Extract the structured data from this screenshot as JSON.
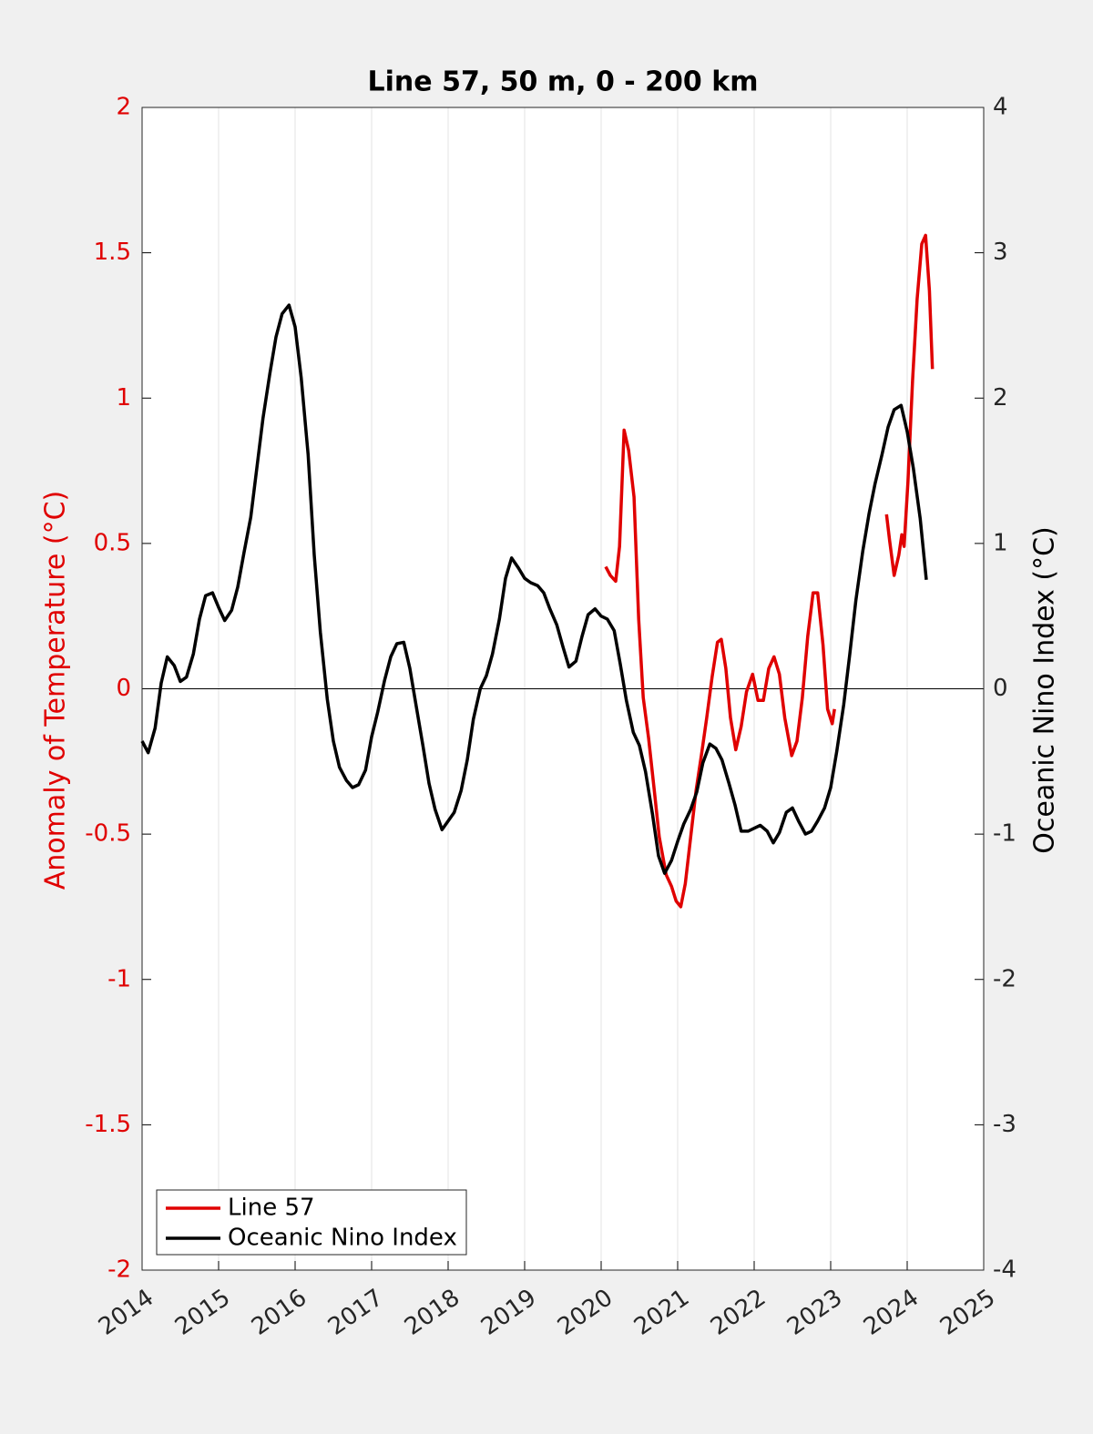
{
  "chart_data": {
    "type": "line",
    "title": "Line 57, 50 m, 0 - 200 km",
    "ylabel": "Anomaly of Temperature (°C)",
    "y2label": "Oceanic Nino Index (°C)",
    "xlim": [
      2014,
      2025
    ],
    "xticks": [
      2014,
      2015,
      2016,
      2017,
      2018,
      2019,
      2020,
      2021,
      2022,
      2023,
      2024,
      2025
    ],
    "ylim": [
      -2,
      2
    ],
    "yticks": [
      -2,
      -1.5,
      -1,
      -0.5,
      0,
      0.5,
      1,
      1.5,
      2
    ],
    "y2lim": [
      -4,
      4
    ],
    "y2ticks": [
      -4,
      -3,
      -2,
      -1,
      0,
      1,
      2,
      3,
      4
    ],
    "grid": "x",
    "legend": "lower left",
    "ylabel_color": "#e00000",
    "series": [
      {
        "name": "Line 57",
        "color": "#e00000",
        "axis": "y",
        "x": [
          2020.06,
          2020.12,
          2020.19,
          2020.24,
          2020.3,
          2020.36,
          2020.43,
          2020.49,
          2020.55,
          2020.62,
          2020.69,
          2020.76,
          2020.85,
          2020.92,
          2020.98,
          2021.04,
          2021.1,
          2021.17,
          2021.24,
          2021.31,
          2021.38,
          2021.45,
          2021.52,
          2021.57,
          2021.63,
          2021.69,
          2021.76,
          2021.83,
          2021.9,
          2021.98,
          2022.05,
          2022.12,
          2022.19,
          2022.26,
          2022.33,
          2022.4,
          2022.49,
          2022.56,
          2022.63,
          2022.7,
          2022.77,
          2022.83,
          2022.9,
          2022.96,
          2023.02,
          2023.05,
          2023.4,
          2023.73,
          2023.77,
          2023.83,
          2023.89,
          2023.93,
          2023.96,
          2024.01,
          2024.07,
          2024.13,
          2024.19,
          2024.24,
          2024.29,
          2024.33
        ],
        "values": [
          0.42,
          0.39,
          0.37,
          0.49,
          0.89,
          0.82,
          0.66,
          0.24,
          -0.03,
          -0.17,
          -0.34,
          -0.51,
          -0.64,
          -0.68,
          -0.73,
          -0.75,
          -0.67,
          -0.51,
          -0.35,
          -0.23,
          -0.1,
          0.04,
          0.16,
          0.17,
          0.07,
          -0.1,
          -0.21,
          -0.13,
          -0.01,
          0.05,
          -0.04,
          -0.04,
          0.07,
          0.11,
          0.05,
          -0.1,
          -0.23,
          -0.18,
          -0.03,
          0.18,
          0.33,
          0.33,
          0.15,
          -0.07,
          -0.12,
          -0.07,
          null,
          0.6,
          0.51,
          0.39,
          0.46,
          0.53,
          0.49,
          0.71,
          1.06,
          1.34,
          1.53,
          1.56,
          1.37,
          1.1
        ]
      },
      {
        "name": "Oceanic Nino Index",
        "color": "#000000",
        "axis": "y2",
        "x": [
          2014.0,
          2014.08,
          2014.17,
          2014.25,
          2014.33,
          2014.42,
          2014.5,
          2014.58,
          2014.67,
          2014.75,
          2014.83,
          2014.92,
          2015.0,
          2015.08,
          2015.17,
          2015.25,
          2015.33,
          2015.42,
          2015.5,
          2015.58,
          2015.67,
          2015.75,
          2015.83,
          2015.92,
          2016.0,
          2016.08,
          2016.17,
          2016.25,
          2016.33,
          2016.42,
          2016.5,
          2016.58,
          2016.67,
          2016.75,
          2016.83,
          2016.92,
          2017.0,
          2017.08,
          2017.17,
          2017.25,
          2017.33,
          2017.42,
          2017.5,
          2017.58,
          2017.67,
          2017.75,
          2017.83,
          2017.92,
          2018.0,
          2018.08,
          2018.17,
          2018.25,
          2018.33,
          2018.42,
          2018.5,
          2018.58,
          2018.67,
          2018.75,
          2018.83,
          2018.92,
          2019.0,
          2019.08,
          2019.17,
          2019.25,
          2019.33,
          2019.42,
          2019.5,
          2019.58,
          2019.67,
          2019.75,
          2019.83,
          2019.92,
          2020.0,
          2020.08,
          2020.17,
          2020.25,
          2020.33,
          2020.42,
          2020.5,
          2020.58,
          2020.67,
          2020.75,
          2020.83,
          2020.92,
          2021.0,
          2021.08,
          2021.17,
          2021.25,
          2021.33,
          2021.42,
          2021.5,
          2021.58,
          2021.67,
          2021.75,
          2021.83,
          2021.92,
          2022.0,
          2022.08,
          2022.17,
          2022.25,
          2022.33,
          2022.42,
          2022.5,
          2022.58,
          2022.67,
          2022.75,
          2022.83,
          2022.92,
          2023.0,
          2023.08,
          2023.17,
          2023.25,
          2023.33,
          2023.42,
          2023.5,
          2023.58,
          2023.67,
          2023.75,
          2023.83,
          2023.92,
          2024.0,
          2024.08,
          2024.17,
          2024.25
        ],
        "values": [
          -0.36,
          -0.44,
          -0.27,
          0.04,
          0.22,
          0.16,
          0.05,
          0.08,
          0.24,
          0.48,
          0.64,
          0.66,
          0.56,
          0.47,
          0.54,
          0.7,
          0.93,
          1.18,
          1.52,
          1.86,
          2.17,
          2.42,
          2.58,
          2.64,
          2.49,
          2.14,
          1.61,
          0.92,
          0.39,
          -0.07,
          -0.36,
          -0.54,
          -0.63,
          -0.68,
          -0.66,
          -0.56,
          -0.33,
          -0.16,
          0.06,
          0.22,
          0.31,
          0.32,
          0.14,
          -0.11,
          -0.39,
          -0.65,
          -0.83,
          -0.97,
          -0.91,
          -0.85,
          -0.7,
          -0.49,
          -0.21,
          0.0,
          0.09,
          0.24,
          0.48,
          0.76,
          0.9,
          0.83,
          0.76,
          0.73,
          0.71,
          0.66,
          0.55,
          0.44,
          0.29,
          0.15,
          0.19,
          0.36,
          0.51,
          0.55,
          0.5,
          0.48,
          0.4,
          0.17,
          -0.08,
          -0.3,
          -0.39,
          -0.57,
          -0.86,
          -1.15,
          -1.27,
          -1.18,
          -1.05,
          -0.93,
          -0.83,
          -0.71,
          -0.51,
          -0.38,
          -0.41,
          -0.49,
          -0.65,
          -0.8,
          -0.98,
          -0.98,
          -0.96,
          -0.94,
          -0.98,
          -1.06,
          -0.99,
          -0.85,
          -0.82,
          -0.91,
          -1.0,
          -0.98,
          -0.91,
          -0.82,
          -0.68,
          -0.43,
          -0.11,
          0.24,
          0.61,
          0.95,
          1.2,
          1.41,
          1.61,
          1.8,
          1.92,
          1.95,
          1.77,
          1.52,
          1.17,
          0.75
        ]
      }
    ]
  }
}
